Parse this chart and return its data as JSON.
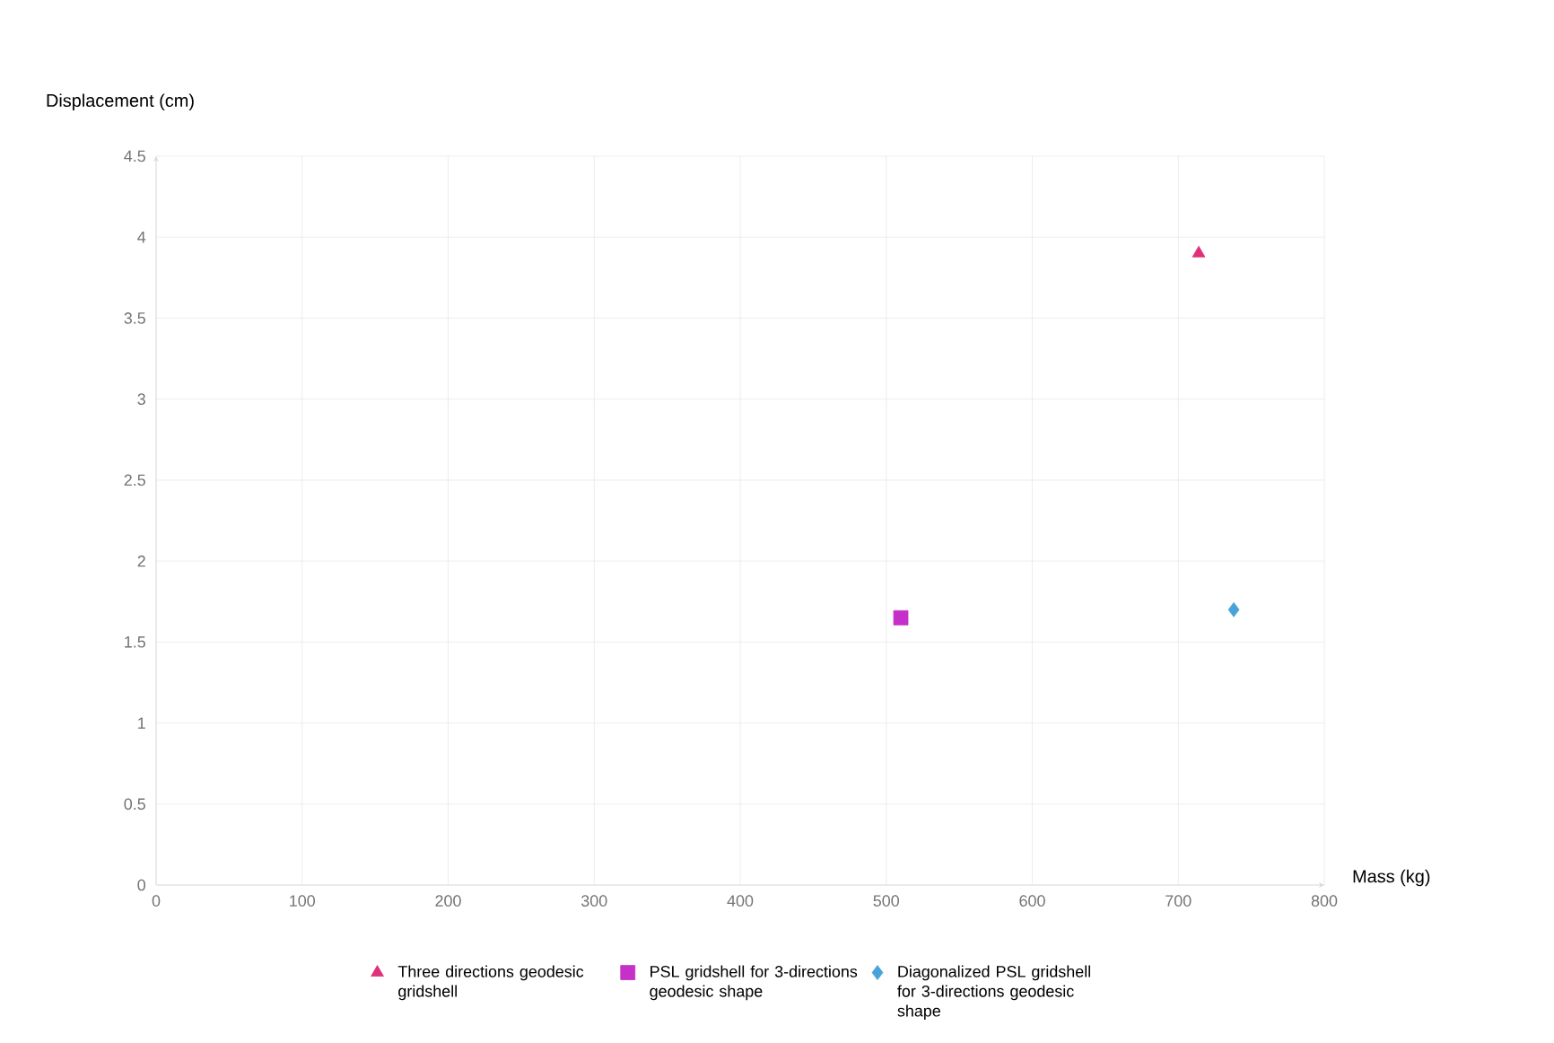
{
  "chart_data": {
    "type": "scatter",
    "xlabel": "Mass (kg)",
    "ylabel": "Displacement (cm)",
    "xlim": [
      0,
      800
    ],
    "xticks": [
      0,
      100,
      200,
      300,
      400,
      500,
      600,
      700,
      800
    ],
    "ylim": [
      0,
      4.5
    ],
    "yticks": [
      0,
      0.5,
      1,
      1.5,
      2,
      2.5,
      3,
      3.5,
      4,
      4.5
    ],
    "grid": true,
    "legend": "bottom",
    "series": [
      {
        "name": "Three directions geodesic gridshell",
        "color": "#e0307a",
        "marker": "triangle",
        "x": [
          714
        ],
        "values": [
          3.9
        ]
      },
      {
        "name": "PSL gridshell for 3-directions geodesic shape",
        "color": "#c530c8",
        "marker": "square",
        "x": [
          510
        ],
        "values": [
          1.65
        ]
      },
      {
        "name": "Diagonalized PSL gridshell for 3-directions geodesic shape",
        "color": "#4aa3d8",
        "marker": "diamond",
        "x": [
          738
        ],
        "values": [
          1.7
        ]
      }
    ]
  }
}
